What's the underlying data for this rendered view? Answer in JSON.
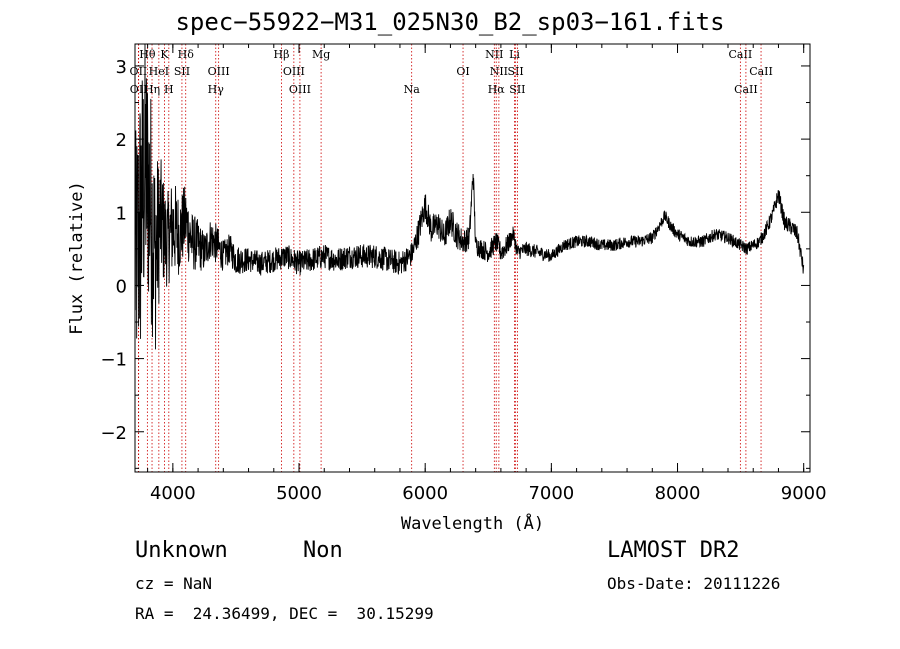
{
  "chart_data": {
    "type": "line",
    "title": "spec−55922−M31_025N30_B2_sp03−161.fits",
    "xlabel": "Wavelength (Å)",
    "ylabel": "Flux (relative)",
    "xlim": [
      3700,
      9050
    ],
    "ylim": [
      -2.55,
      3.3
    ],
    "xticks": [
      4000,
      5000,
      6000,
      7000,
      8000,
      9000
    ],
    "yticks": [
      -2,
      -1,
      0,
      1,
      2,
      3
    ],
    "ytick_labels": [
      "−2",
      "−1",
      "0",
      "1",
      "2",
      "3"
    ],
    "series": [
      {
        "x": [
          3700,
          3740,
          3780,
          3820,
          3860,
          3900,
          3950,
          4000,
          4050,
          4100,
          4150,
          4200,
          4250,
          4300,
          4350,
          4400,
          4450,
          4500,
          4600,
          4700,
          4800,
          4900,
          5000,
          5100,
          5200,
          5300,
          5400,
          5500,
          5600,
          5700,
          5800,
          5880,
          5900,
          5950,
          6000,
          6050,
          6100,
          6150,
          6200,
          6250,
          6300,
          6350,
          6380,
          6400,
          6450,
          6500,
          6563,
          6600,
          6650,
          6700,
          6730,
          6800,
          6900,
          7000,
          7100,
          7200,
          7300,
          7400,
          7500,
          7600,
          7700,
          7800,
          7900,
          7950,
          8000,
          8100,
          8200,
          8300,
          8400,
          8500,
          8550,
          8600,
          8650,
          8700,
          8750,
          8800,
          8850,
          8900,
          8950,
          9000
        ],
        "y": [
          0.3,
          0.8,
          1.6,
          1.2,
          0.4,
          0.9,
          0.6,
          0.8,
          0.7,
          0.9,
          0.6,
          0.55,
          0.45,
          0.65,
          0.55,
          0.4,
          0.5,
          0.35,
          0.35,
          0.3,
          0.35,
          0.4,
          0.3,
          0.35,
          0.4,
          0.35,
          0.4,
          0.4,
          0.4,
          0.35,
          0.3,
          0.4,
          0.45,
          0.75,
          1.1,
          0.75,
          0.85,
          0.65,
          0.9,
          0.7,
          0.6,
          0.65,
          1.55,
          0.55,
          0.5,
          0.45,
          0.6,
          0.45,
          0.55,
          0.7,
          0.45,
          0.5,
          0.45,
          0.4,
          0.55,
          0.6,
          0.6,
          0.55,
          0.55,
          0.6,
          0.6,
          0.65,
          0.95,
          0.8,
          0.7,
          0.6,
          0.6,
          0.7,
          0.65,
          0.55,
          0.5,
          0.55,
          0.6,
          0.75,
          0.95,
          1.25,
          0.85,
          0.8,
          0.7,
          0.2
        ],
        "noise": [
          1.2,
          1.5,
          1.3,
          1.2,
          1.0,
          0.65,
          0.45,
          0.5,
          0.4,
          0.35,
          0.3,
          0.25,
          0.2,
          0.2,
          0.2,
          0.15,
          0.15,
          0.15,
          0.12,
          0.12,
          0.12,
          0.12,
          0.12,
          0.12,
          0.12,
          0.12,
          0.12,
          0.12,
          0.12,
          0.12,
          0.12,
          0.12,
          0.12,
          0.14,
          0.14,
          0.14,
          0.14,
          0.14,
          0.14,
          0.14,
          0.12,
          0.12,
          0.12,
          0.1,
          0.1,
          0.1,
          0.1,
          0.1,
          0.1,
          0.08,
          0.08,
          0.07,
          0.07,
          0.06,
          0.06,
          0.06,
          0.06,
          0.06,
          0.06,
          0.06,
          0.06,
          0.06,
          0.06,
          0.06,
          0.06,
          0.06,
          0.06,
          0.06,
          0.06,
          0.06,
          0.06,
          0.06,
          0.06,
          0.07,
          0.07,
          0.08,
          0.08,
          0.08,
          0.08,
          0.08
        ]
      }
    ],
    "lines": [
      {
        "label": "Hθ",
        "x": 3798,
        "row": 0
      },
      {
        "label": "K",
        "x": 3934,
        "row": 0
      },
      {
        "label": "Hδ",
        "x": 4102,
        "row": 0
      },
      {
        "label": "Hβ",
        "x": 4861,
        "row": 0
      },
      {
        "label": "Mg",
        "x": 5175,
        "row": 0
      },
      {
        "label": "NII",
        "x": 6548,
        "row": 0
      },
      {
        "label": "Li",
        "x": 6708,
        "row": 0
      },
      {
        "label": "CaII",
        "x": 8498,
        "row": 0
      },
      {
        "label": "OII",
        "x": 3727,
        "row": 1
      },
      {
        "label": "HeI",
        "x": 3889,
        "row": 1
      },
      {
        "label": "SII",
        "x": 4072,
        "row": 1
      },
      {
        "label": "OIII",
        "x": 4363,
        "row": 1
      },
      {
        "label": "OIII",
        "x": 4959,
        "row": 1
      },
      {
        "label": "OI",
        "x": 6300,
        "row": 1
      },
      {
        "label": "NII",
        "x": 6584,
        "row": 1
      },
      {
        "label": "SII",
        "x": 6717,
        "row": 1
      },
      {
        "label": "CaII",
        "x": 8662,
        "row": 1
      },
      {
        "label": "OII",
        "x": 3729,
        "row": 2
      },
      {
        "label": "Hη",
        "x": 3835,
        "row": 2
      },
      {
        "label": "H",
        "x": 3968,
        "row": 2
      },
      {
        "label": "Hγ",
        "x": 4340,
        "row": 2
      },
      {
        "label": "OIII",
        "x": 5007,
        "row": 2
      },
      {
        "label": "Na",
        "x": 5893,
        "row": 2
      },
      {
        "label": "Hα",
        "x": 6563,
        "row": 2
      },
      {
        "label": "SII",
        "x": 6731,
        "row": 2
      },
      {
        "label": "CaII",
        "x": 8542,
        "row": 2
      }
    ]
  },
  "info": {
    "class": "Unknown",
    "subclass": "Non",
    "survey": "LAMOST DR2",
    "cz": "cz = NaN",
    "obs_date": "Obs-Date: 20111226",
    "coords": "RA =  24.36499, DEC =  30.15299"
  },
  "colors": {
    "line": "#000000",
    "marker": "#cc0000"
  }
}
